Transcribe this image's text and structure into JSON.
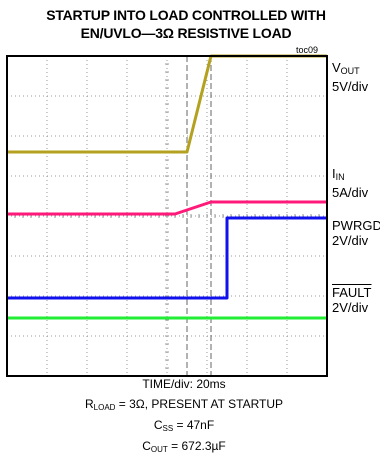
{
  "title_line1": "STARTUP INTO LOAD CONTROLLED WITH",
  "title_line2": "EN/UVLO—3Ω RESISTIVE LOAD",
  "figure_tag": "toc09",
  "channels": {
    "vout": {
      "name": "V",
      "sub": "OUT",
      "scale": "5V/div",
      "color": "#b3a11f"
    },
    "iin": {
      "name": "I",
      "sub": "IN",
      "scale": "5A/div",
      "color": "#ff1a7a"
    },
    "pwrgd": {
      "name": "PWRGD",
      "scale": "2V/div",
      "color": "#1111ee"
    },
    "fault": {
      "name": "FAULT",
      "scale": "2V/div",
      "color": "#22ee33"
    }
  },
  "footer": {
    "time": "TIME/div: 20ms",
    "rload_pre": "R",
    "rload_sub": "LOAD",
    "rload_post": " = 3Ω, PRESENT AT STARTUP",
    "css_pre": "C",
    "css_sub": "SS",
    "css_post": " = 47nF",
    "cout_pre": "C",
    "cout_sub": "OUT",
    "cout_post": " = 672.3µF"
  },
  "chart_data": {
    "type": "line",
    "x_divisions": 8,
    "y_divisions": 8,
    "grid": true,
    "series": [
      {
        "name": "VOUT",
        "x": [
          0,
          4.5,
          5.1,
          8
        ],
        "y": [
          5.6,
          5.6,
          8.0,
          8.0
        ]
      },
      {
        "name": "IIN",
        "x": [
          0,
          4.2,
          5.1,
          8
        ],
        "y": [
          4.05,
          4.05,
          4.35,
          4.35
        ]
      },
      {
        "name": "PWRGD",
        "x": [
          0,
          5.5,
          5.5,
          8
        ],
        "y": [
          1.95,
          1.95,
          3.95,
          3.95
        ]
      },
      {
        "name": "FAULT",
        "x": [
          0,
          8
        ],
        "y": [
          1.45,
          1.45
        ]
      }
    ]
  }
}
